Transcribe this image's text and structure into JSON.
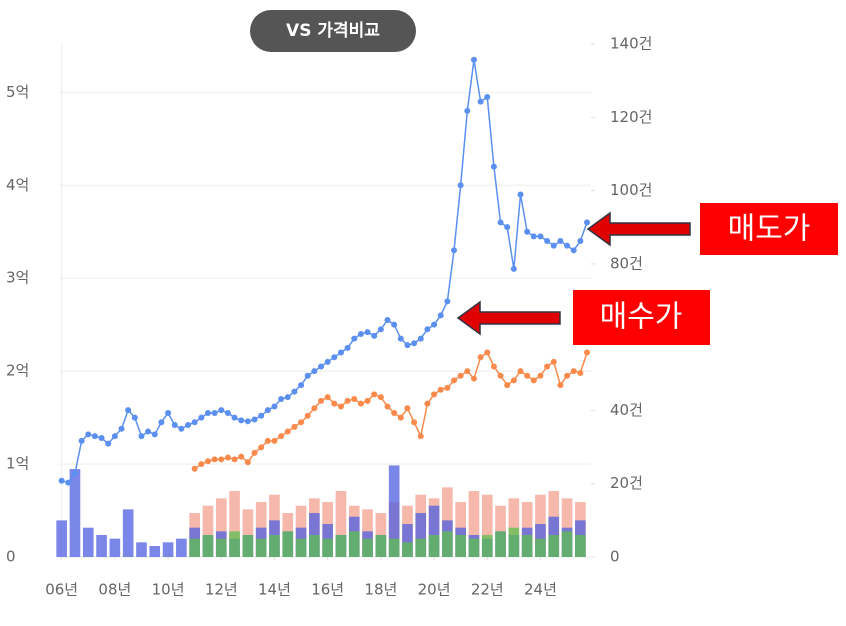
{
  "chart_data": {
    "type": "combo",
    "button": "VS 가격비교",
    "annotations": [
      {
        "text": "매도가"
      },
      {
        "text": "매수가"
      }
    ],
    "xlim": [
      2005.9,
      2025.9
    ],
    "xticks": [
      {
        "value": 2006,
        "label": "06년"
      },
      {
        "value": 2008,
        "label": "08년"
      },
      {
        "value": 2010,
        "label": "10년"
      },
      {
        "value": 2012,
        "label": "12년"
      },
      {
        "value": 2014,
        "label": "14년"
      },
      {
        "value": 2016,
        "label": "16년"
      },
      {
        "value": 2018,
        "label": "18년"
      },
      {
        "value": 2020,
        "label": "20년"
      },
      {
        "value": 2022,
        "label": "22년"
      },
      {
        "value": 2024,
        "label": "24년"
      }
    ],
    "ylim": [
      0,
      5.52
    ],
    "yticks": [
      0,
      {
        "value": 1,
        "label": "1억"
      },
      {
        "value": 2,
        "label": "2억"
      },
      {
        "value": 3,
        "label": "3억"
      },
      {
        "value": 4,
        "label": "4억"
      },
      {
        "value": 5,
        "label": "5억"
      }
    ],
    "y2lim": [
      0,
      140
    ],
    "y2ticks": [
      0,
      {
        "value": 20,
        "label": "20건"
      },
      {
        "value": 40,
        "label": "40건"
      },
      {
        "value": 60,
        "label": "60건"
      },
      {
        "value": 80,
        "label": "80건"
      },
      {
        "value": 100,
        "label": "100건"
      },
      {
        "value": 120,
        "label": "120건"
      },
      {
        "value": 140,
        "label": "140건"
      }
    ],
    "grid": true,
    "series": [
      {
        "type": "bar",
        "axis": "y2",
        "color": "#f4a090",
        "x": [
          2011,
          2011.5,
          2012,
          2012.5,
          2013,
          2013.5,
          2014,
          2014.5,
          2015,
          2015.5,
          2016,
          2016.5,
          2017,
          2017.5,
          2018,
          2018.5,
          2019,
          2019.5,
          2020,
          2020.5,
          2021,
          2021.5,
          2022,
          2022.5,
          2023,
          2023.5,
          2024,
          2024.5,
          2025,
          2025.5
        ],
        "values": [
          12,
          14,
          16,
          18,
          13,
          15,
          17,
          12,
          14,
          16,
          15,
          18,
          14,
          13,
          12,
          15,
          14,
          17,
          16,
          19,
          15,
          18,
          17,
          14,
          16,
          15,
          17,
          18,
          16,
          15
        ]
      },
      {
        "type": "bar",
        "axis": "y2",
        "color": "#4f5fe0",
        "x": [
          2006,
          2006.5,
          2007,
          2007.5,
          2008,
          2008.5,
          2009,
          2009.5,
          2010,
          2010.5,
          2011,
          2011.5,
          2012,
          2012.5,
          2013,
          2013.5,
          2014,
          2014.5,
          2015,
          2015.5,
          2016,
          2016.5,
          2017,
          2017.5,
          2018,
          2018.5,
          2019,
          2019.5,
          2020,
          2020.5,
          2021,
          2021.5,
          2022,
          2022.5,
          2023,
          2023.5,
          2024,
          2024.5,
          2025,
          2025.5
        ],
        "values": [
          10,
          24,
          8,
          6,
          5,
          13,
          4,
          3,
          4,
          5,
          8,
          6,
          7,
          5,
          6,
          8,
          10,
          7,
          8,
          12,
          9,
          6,
          11,
          7,
          6,
          25,
          9,
          12,
          14,
          10,
          8,
          6,
          5,
          7,
          6,
          8,
          9,
          11,
          8,
          10
        ]
      },
      {
        "type": "bar",
        "axis": "y2",
        "color": "#5cc050",
        "x": [
          2011,
          2011.5,
          2012,
          2012.5,
          2013,
          2013.5,
          2014,
          2014.5,
          2015,
          2015.5,
          2016,
          2016.5,
          2017,
          2017.5,
          2018,
          2018.5,
          2019,
          2019.5,
          2020,
          2020.5,
          2021,
          2021.5,
          2022,
          2022.5,
          2023,
          2023.5,
          2024,
          2024.5,
          2025,
          2025.5
        ],
        "values": [
          5,
          6,
          5,
          7,
          6,
          5,
          6,
          7,
          5,
          6,
          5,
          6,
          7,
          5,
          6,
          5,
          4,
          5,
          6,
          7,
          6,
          5,
          6,
          7,
          8,
          6,
          5,
          6,
          7,
          6
        ]
      },
      {
        "type": "line",
        "color": "#f98a4b",
        "x": [
          2011,
          2011.25,
          2011.5,
          2011.75,
          2012,
          2012.25,
          2012.5,
          2012.75,
          2013,
          2013.25,
          2013.5,
          2013.75,
          2014,
          2014.25,
          2014.5,
          2014.75,
          2015,
          2015.25,
          2015.5,
          2015.75,
          2016,
          2016.25,
          2016.5,
          2016.75,
          2017,
          2017.25,
          2017.5,
          2017.75,
          2018,
          2018.25,
          2018.5,
          2018.75,
          2019,
          2019.25,
          2019.5,
          2019.75,
          2020,
          2020.25,
          2020.5,
          2020.75,
          2021,
          2021.25,
          2021.5,
          2021.75,
          2022,
          2022.25,
          2022.5,
          2022.75,
          2023,
          2023.25,
          2023.5,
          2023.75,
          2024,
          2024.25,
          2024.5,
          2024.75,
          2025,
          2025.25,
          2025.5,
          2025.75
        ],
        "values": [
          0.95,
          1.0,
          1.03,
          1.05,
          1.05,
          1.07,
          1.05,
          1.08,
          1.02,
          1.12,
          1.18,
          1.25,
          1.25,
          1.3,
          1.35,
          1.4,
          1.45,
          1.52,
          1.6,
          1.68,
          1.72,
          1.65,
          1.62,
          1.68,
          1.7,
          1.65,
          1.68,
          1.75,
          1.72,
          1.62,
          1.55,
          1.5,
          1.6,
          1.45,
          1.3,
          1.65,
          1.75,
          1.8,
          1.82,
          1.9,
          1.95,
          2.0,
          1.92,
          2.15,
          2.2,
          2.05,
          1.95,
          1.85,
          1.9,
          2.0,
          1.95,
          1.9,
          1.95,
          2.05,
          2.1,
          1.85,
          1.95,
          2.0,
          1.98,
          2.2
        ]
      },
      {
        "type": "line",
        "color": "#5b8ff0",
        "x": [
          2006,
          2006.25,
          2006.5,
          2006.75,
          2007,
          2007.25,
          2007.5,
          2007.75,
          2008,
          2008.25,
          2008.5,
          2008.75,
          2009,
          2009.25,
          2009.5,
          2009.75,
          2010,
          2010.25,
          2010.5,
          2010.75,
          2011,
          2011.25,
          2011.5,
          2011.75,
          2012,
          2012.25,
          2012.5,
          2012.75,
          2013,
          2013.25,
          2013.5,
          2013.75,
          2014,
          2014.25,
          2014.5,
          2014.75,
          2015,
          2015.25,
          2015.5,
          2015.75,
          2016,
          2016.25,
          2016.5,
          2016.75,
          2017,
          2017.25,
          2017.5,
          2017.75,
          2018,
          2018.25,
          2018.5,
          2018.75,
          2019,
          2019.25,
          2019.5,
          2019.75,
          2020,
          2020.25,
          2020.5,
          2020.75,
          2021,
          2021.25,
          2021.5,
          2021.75,
          2022,
          2022.25,
          2022.5,
          2022.75,
          2023,
          2023.25,
          2023.5,
          2023.75,
          2024,
          2024.25,
          2024.5,
          2024.75,
          2025,
          2025.25,
          2025.5,
          2025.75
        ],
        "values": [
          0.82,
          0.8,
          0.9,
          1.25,
          1.32,
          1.3,
          1.28,
          1.22,
          1.3,
          1.38,
          1.58,
          1.5,
          1.3,
          1.35,
          1.32,
          1.45,
          1.55,
          1.42,
          1.38,
          1.42,
          1.45,
          1.5,
          1.55,
          1.55,
          1.58,
          1.55,
          1.5,
          1.47,
          1.46,
          1.48,
          1.52,
          1.58,
          1.62,
          1.7,
          1.72,
          1.78,
          1.85,
          1.95,
          2.0,
          2.05,
          2.1,
          2.15,
          2.2,
          2.25,
          2.35,
          2.4,
          2.42,
          2.38,
          2.45,
          2.55,
          2.5,
          2.35,
          2.28,
          2.3,
          2.35,
          2.45,
          2.5,
          2.6,
          2.75,
          3.3,
          4.0,
          4.8,
          5.35,
          4.9,
          4.95,
          4.2,
          3.6,
          3.55,
          3.1,
          3.9,
          3.5,
          3.45,
          3.45,
          3.4,
          3.35,
          3.4,
          3.35,
          3.3,
          3.4,
          3.6
        ]
      }
    ]
  }
}
